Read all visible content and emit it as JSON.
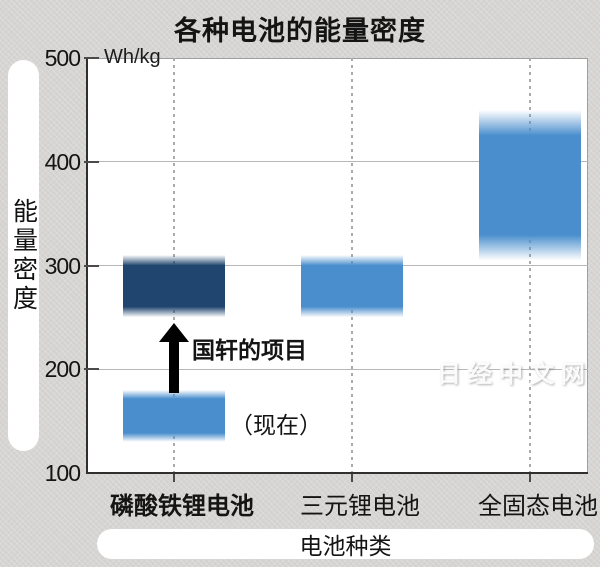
{
  "title": "各种电池的能量密度",
  "watermark": "日经中文网",
  "y_axis": {
    "unit": "Wh/kg",
    "label": "能量密度",
    "min": 100,
    "max": 500
  },
  "x_axis": {
    "label": "电池种类"
  },
  "colors": {
    "light_blue": "#4a8ecd",
    "dark_navy": "#20456e",
    "background": "#d3d2d0",
    "plot_background": "#ffffff",
    "grid": "#b7b7b7",
    "axis": "#2f2f2f",
    "arrow": "#000000"
  },
  "chart_data": {
    "type": "bar",
    "subtype": "floating-range-bars",
    "title": "各种电池的能量密度",
    "unit": "Wh/kg",
    "ylabel": "能量密度",
    "xlabel": "电池种类",
    "ylim": [
      100,
      500
    ],
    "yticks": [
      100,
      200,
      300,
      400,
      500
    ],
    "grid": "horizontal solid lines at 200/300/400; vertical dashed line at each category",
    "legend": "none",
    "categories": [
      {
        "label": "磷酸铁锂电池",
        "bold": true
      },
      {
        "label": "三元锂电池",
        "bold": false
      },
      {
        "label": "全固态电池",
        "bold": false
      }
    ],
    "bars": [
      {
        "category_index": 0,
        "label": "（现在）",
        "low": 130,
        "high": 180,
        "color": "#4a8ecd"
      },
      {
        "category_index": 0,
        "label": "国轩的项目",
        "low": 250,
        "high": 310,
        "color": "#20456e"
      },
      {
        "category_index": 1,
        "label": "",
        "low": 250,
        "high": 310,
        "color": "#4a8ecd"
      },
      {
        "category_index": 2,
        "label": "",
        "low": 305,
        "high": 450,
        "color": "#4a8ecd"
      }
    ],
    "annotations": [
      {
        "text": "国轩的项目",
        "type": "arrow-label",
        "bold": true
      },
      {
        "text": "（现在）",
        "type": "label",
        "bold": false
      }
    ]
  }
}
